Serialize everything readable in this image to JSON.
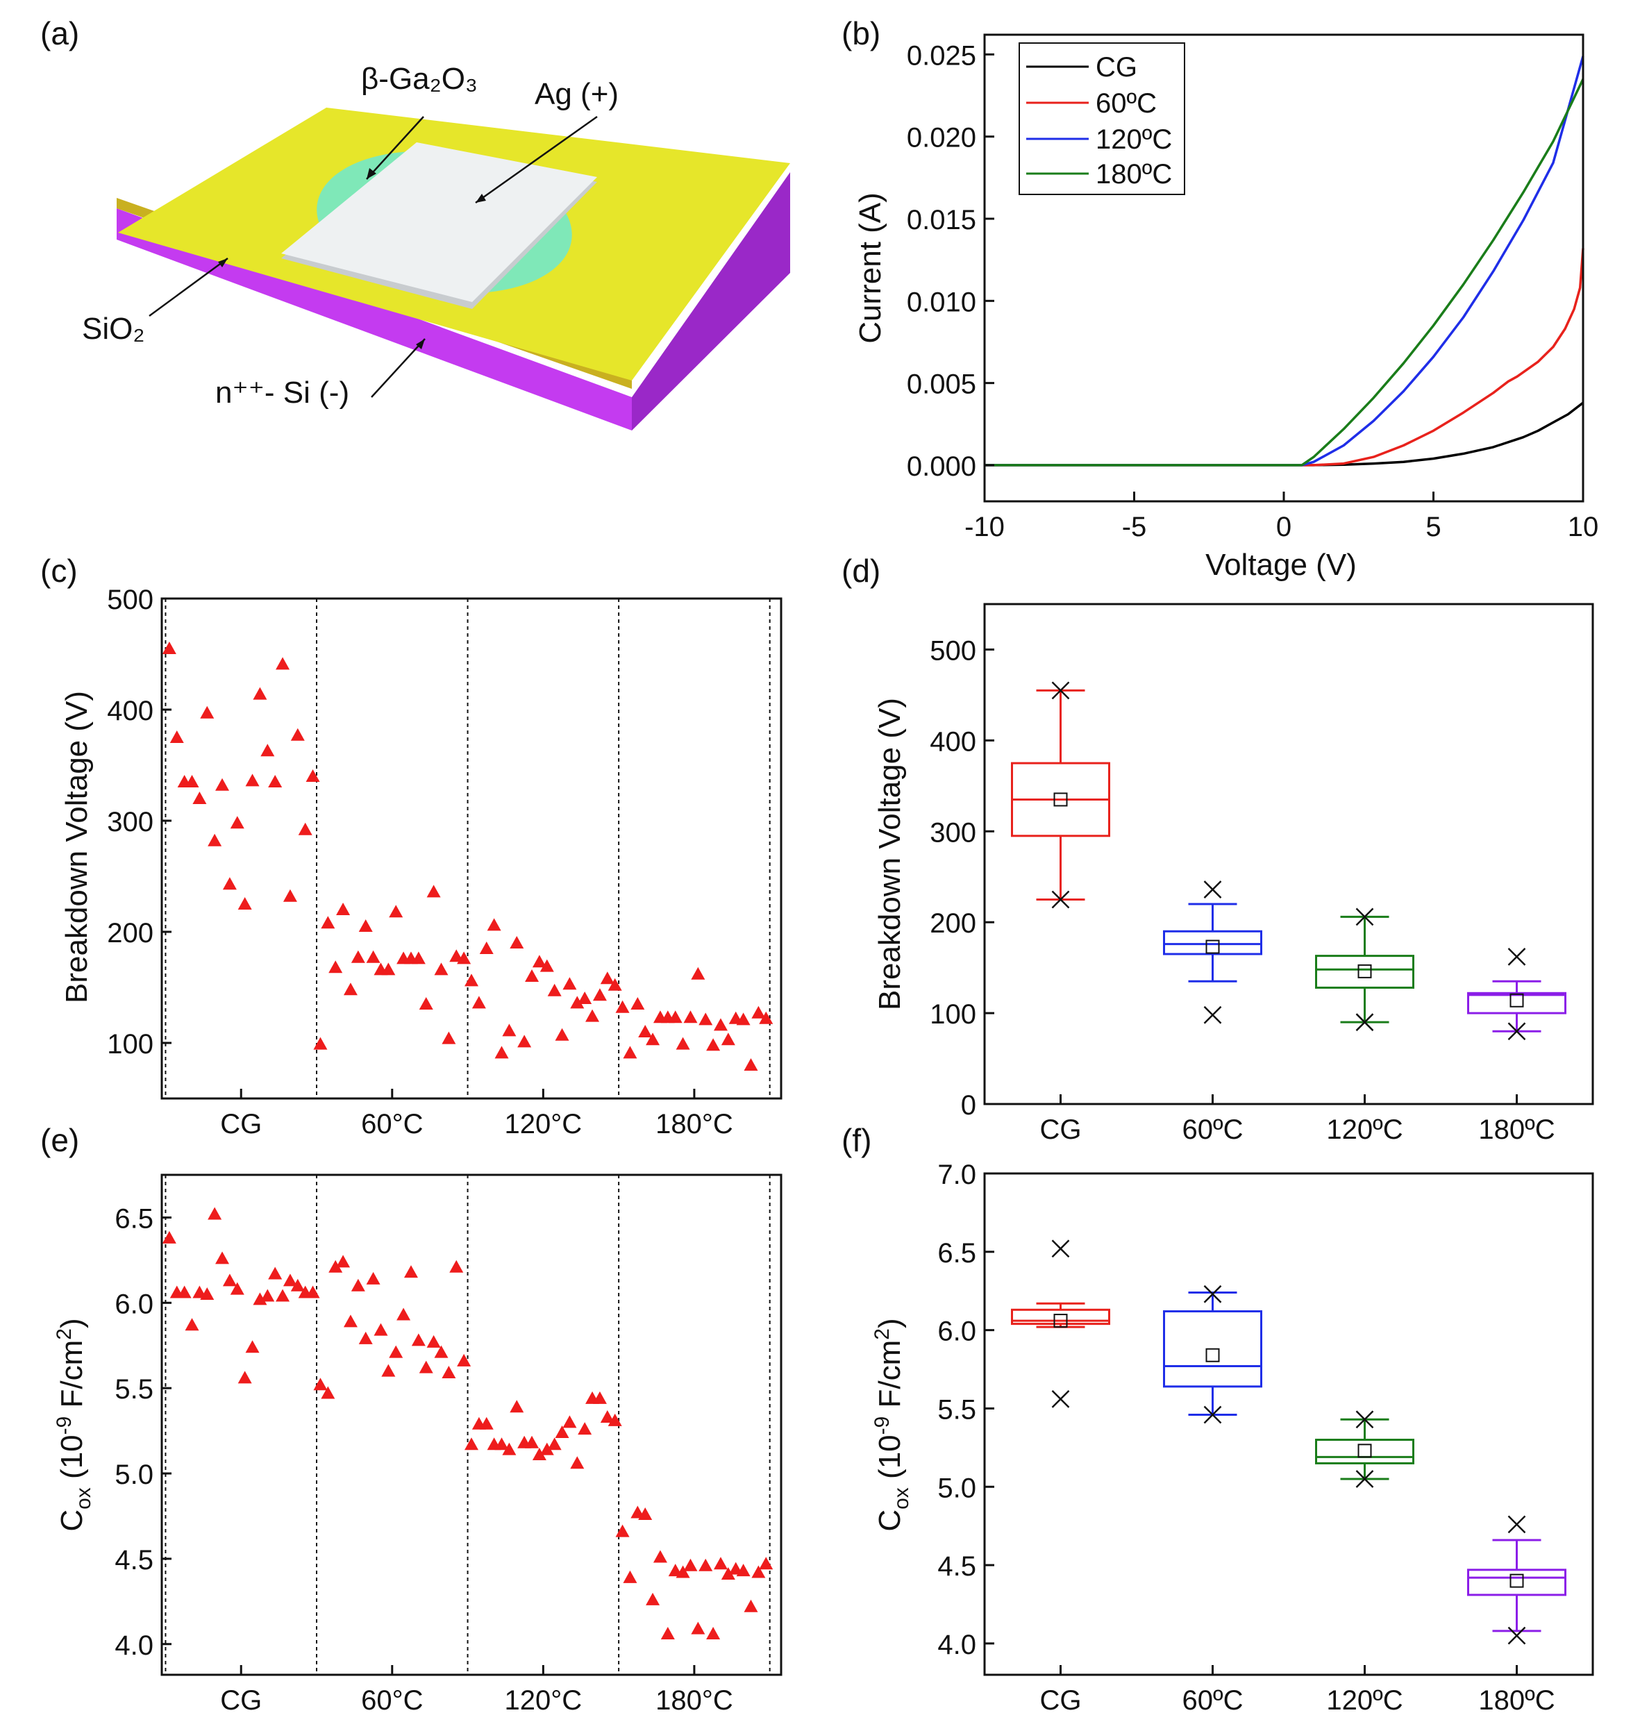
{
  "panels": {
    "a": {
      "label": "(a)",
      "labels": {
        "ga2o3": "β-Ga₂O₃",
        "ag": "Ag (+)",
        "sio2": "SiO₂",
        "si": "n⁺⁺- Si (-)"
      },
      "colors": {
        "sio2": "#e6e62a",
        "si": "#c43bf0",
        "ga2o3": "#7fe8b8",
        "ag": "#eef1f2"
      }
    },
    "b": {
      "label": "(b)",
      "chart_data": {
        "type": "line",
        "xlabel": "Voltage (V)",
        "ylabel": "Current (A)",
        "xlim": [
          -10,
          10
        ],
        "ylim": [
          -0.0022,
          0.0262
        ],
        "xticks": [
          "-10",
          "-5",
          "0",
          "5",
          "10"
        ],
        "xtick_values": [
          -10,
          -5,
          0,
          5,
          10
        ],
        "yticks": [
          "0.000",
          "0.005",
          "0.010",
          "0.015",
          "0.020",
          "0.025"
        ],
        "ytick_values": [
          0,
          0.005,
          0.01,
          0.015,
          0.02,
          0.025
        ],
        "legend_position": "top-left",
        "series": [
          {
            "name": "CG",
            "color": "#000000",
            "x": [
              -10,
              0,
              1,
              2,
              3,
              4,
              5,
              6,
              7,
              8,
              8.5,
              9,
              9.5,
              10
            ],
            "y": [
              0,
              0,
              0,
              3e-05,
              0.0001,
              0.0002,
              0.0004,
              0.0007,
              0.0011,
              0.0017,
              0.0021,
              0.0026,
              0.0031,
              0.0038
            ]
          },
          {
            "name": "60ºC",
            "color": "#e8221c",
            "x": [
              -10,
              0,
              1,
              2,
              3,
              4,
              5,
              6,
              7,
              7.5,
              7.8,
              8.5,
              9,
              9.4,
              9.7,
              9.9,
              10
            ],
            "y": [
              0,
              0,
              0,
              0.0001,
              0.0005,
              0.0012,
              0.0021,
              0.0032,
              0.0044,
              0.0051,
              0.0054,
              0.0063,
              0.0072,
              0.0083,
              0.0095,
              0.0108,
              0.0132
            ]
          },
          {
            "name": "120ºC",
            "color": "#1f2ee8",
            "x": [
              -10,
              0,
              0.6,
              1,
              2,
              3,
              4,
              5,
              6,
              7,
              8,
              9,
              10
            ],
            "y": [
              0,
              0,
              0,
              0.0002,
              0.0012,
              0.0027,
              0.0045,
              0.0066,
              0.009,
              0.0118,
              0.0149,
              0.0184,
              0.0249
            ]
          },
          {
            "name": "180ºC",
            "color": "#1a7d1a",
            "x": [
              -10,
              0,
              0.6,
              1,
              2,
              3,
              4,
              5,
              6,
              7,
              8,
              9,
              10
            ],
            "y": [
              0,
              0,
              0,
              0.0005,
              0.0022,
              0.0041,
              0.0062,
              0.0085,
              0.011,
              0.0137,
              0.0166,
              0.0197,
              0.0235
            ]
          }
        ]
      }
    },
    "c": {
      "label": "(c)",
      "chart_data": {
        "type": "scatter",
        "ylabel": "Breakdown Voltage (V)",
        "ylim": [
          50,
          500
        ],
        "yticks": [
          "100",
          "200",
          "300",
          "400",
          "500"
        ],
        "ytick_values": [
          100,
          200,
          300,
          400,
          500
        ],
        "x_count": 82,
        "group_dividers": [
          0.5,
          20.5,
          40.5,
          60.5,
          80.5
        ],
        "group_labels": [
          "CG",
          "60°C",
          "120°C",
          "180°C"
        ],
        "group_label_x": [
          10.5,
          30.5,
          50.5,
          70.5
        ],
        "color": "#ee1c1c",
        "values": [
          455,
          375,
          335,
          335,
          320,
          397,
          282,
          332,
          243,
          298,
          225,
          336,
          414,
          363,
          335,
          441,
          232,
          377,
          292,
          340,
          99,
          208,
          168,
          220,
          148,
          177,
          205,
          177,
          166,
          166,
          218,
          176,
          176,
          176,
          135,
          236,
          166,
          104,
          178,
          176,
          156,
          136,
          185,
          206,
          91,
          111,
          190,
          101,
          160,
          173,
          169,
          147,
          107,
          153,
          136,
          140,
          124,
          143,
          158,
          152,
          132,
          91,
          135,
          110,
          103,
          123,
          123,
          123,
          99,
          123,
          162,
          121,
          98,
          116,
          103,
          122,
          121,
          80,
          127,
          122
        ]
      }
    },
    "d": {
      "label": "(d)",
      "chart_data": {
        "type": "box",
        "ylabel": "Breakdown Voltage (V)",
        "ylim": [
          0,
          550
        ],
        "yticks": [
          "0",
          "100",
          "200",
          "300",
          "400",
          "500"
        ],
        "ytick_values": [
          0,
          100,
          200,
          300,
          400,
          500
        ],
        "categories": [
          "CG",
          "60ºC",
          "120ºC",
          "180ºC"
        ],
        "boxes": [
          {
            "q1": 295,
            "median": 335,
            "q3": 375,
            "whisker_low": 225,
            "whisker_high": 455,
            "mean": 335,
            "min": 225,
            "max": 455,
            "color": "#e8221c"
          },
          {
            "q1": 165,
            "median": 176,
            "q3": 190,
            "whisker_low": 135,
            "whisker_high": 220,
            "mean": 173,
            "min": 98,
            "max": 236,
            "color": "#1f2ee8"
          },
          {
            "q1": 128,
            "median": 148,
            "q3": 163,
            "whisker_low": 90,
            "whisker_high": 206,
            "mean": 146,
            "min": 90,
            "max": 206,
            "color": "#1a7d1a"
          },
          {
            "q1": 100,
            "median": 120,
            "q3": 122,
            "whisker_low": 80,
            "whisker_high": 135,
            "mean": 114,
            "min": 80,
            "max": 162,
            "color": "#8b1ee8"
          }
        ]
      }
    },
    "e": {
      "label": "(e)",
      "chart_data": {
        "type": "scatter",
        "ylabel_main": "C",
        "ylabel_sub": "ox",
        "ylabel_rest1": " (10",
        "ylabel_sup1": "-9",
        "ylabel_rest2": " F/cm",
        "ylabel_sup2": "2",
        "ylabel_rest3": ")",
        "ylim": [
          3.82,
          6.75
        ],
        "yticks": [
          "4.0",
          "4.5",
          "5.0",
          "5.5",
          "6.0",
          "6.5"
        ],
        "ytick_values": [
          4.0,
          4.5,
          5.0,
          5.5,
          6.0,
          6.5
        ],
        "x_count": 82,
        "group_dividers": [
          0.5,
          20.5,
          40.5,
          60.5,
          80.5
        ],
        "group_labels": [
          "CG",
          "60°C",
          "120°C",
          "180°C"
        ],
        "group_label_x": [
          10.5,
          30.5,
          50.5,
          70.5
        ],
        "color": "#ee1c1c",
        "values": [
          6.38,
          6.06,
          6.06,
          5.87,
          6.06,
          6.05,
          6.52,
          6.26,
          6.13,
          6.08,
          5.56,
          5.74,
          6.02,
          6.04,
          6.17,
          6.04,
          6.13,
          6.1,
          6.06,
          6.06,
          5.52,
          5.47,
          6.21,
          6.24,
          5.89,
          6.1,
          5.79,
          6.14,
          5.84,
          5.6,
          5.71,
          5.93,
          6.18,
          5.78,
          5.62,
          5.77,
          5.71,
          5.59,
          6.21,
          5.66,
          5.17,
          5.29,
          5.29,
          5.17,
          5.17,
          5.14,
          5.39,
          5.18,
          5.18,
          5.11,
          5.14,
          5.17,
          5.24,
          5.3,
          5.06,
          5.26,
          5.44,
          5.44,
          5.33,
          5.31,
          4.66,
          4.39,
          4.77,
          4.76,
          4.26,
          4.51,
          4.06,
          4.43,
          4.42,
          4.46,
          4.09,
          4.46,
          4.06,
          4.47,
          4.41,
          4.44,
          4.43,
          4.22,
          4.42,
          4.47
        ]
      }
    },
    "f": {
      "label": "(f)",
      "chart_data": {
        "type": "box",
        "ylabel_main": "C",
        "ylabel_sub": "ox",
        "ylabel_rest1": " (10",
        "ylabel_sup1": "-9",
        "ylabel_rest2": " F/cm",
        "ylabel_sup2": "2",
        "ylabel_rest3": ")",
        "ylim": [
          3.8,
          7.0
        ],
        "yticks": [
          "4.0",
          "4.5",
          "5.0",
          "5.5",
          "6.0",
          "6.5",
          "7.0"
        ],
        "ytick_values": [
          4.0,
          4.5,
          5.0,
          5.5,
          6.0,
          6.5,
          7.0
        ],
        "categories": [
          "CG",
          "60ºC",
          "120ºC",
          "180ºC"
        ],
        "boxes": [
          {
            "q1": 6.04,
            "median": 6.06,
            "q3": 6.13,
            "whisker_low": 6.02,
            "whisker_high": 6.17,
            "mean": 6.06,
            "min": 5.56,
            "max": 6.52,
            "color": "#e8221c"
          },
          {
            "q1": 5.64,
            "median": 5.77,
            "q3": 6.12,
            "whisker_low": 5.46,
            "whisker_high": 6.24,
            "mean": 5.84,
            "min": 5.46,
            "max": 6.23,
            "color": "#1f2ee8"
          },
          {
            "q1": 5.15,
            "median": 5.19,
            "q3": 5.3,
            "whisker_low": 5.05,
            "whisker_high": 5.43,
            "mean": 5.23,
            "min": 5.05,
            "max": 5.43,
            "color": "#1a7d1a"
          },
          {
            "q1": 4.31,
            "median": 4.42,
            "q3": 4.47,
            "whisker_low": 4.08,
            "whisker_high": 4.66,
            "mean": 4.4,
            "min": 4.05,
            "max": 4.76,
            "color": "#8b1ee8"
          }
        ]
      }
    }
  }
}
